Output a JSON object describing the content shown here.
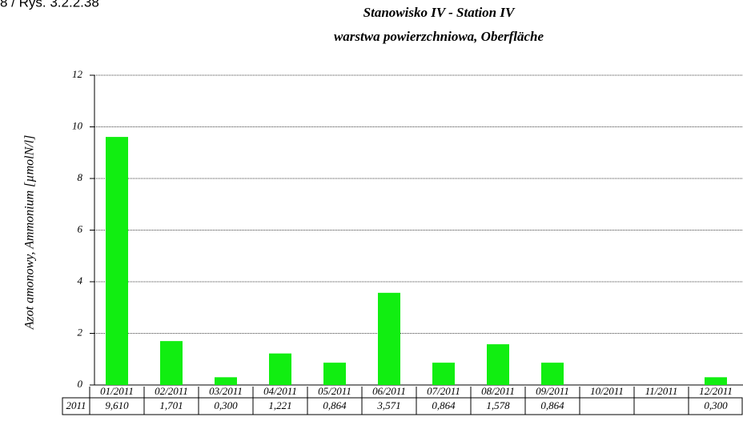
{
  "caption": "8 / Rys. 3.2.2.38",
  "chart_data": {
    "type": "bar",
    "title": "Stanowisko IV - Station IV",
    "subtitle": "warstwa powierzchniowa, Oberfläche",
    "y_label": "Azot amonowy, Ammonium [µmolN/l]",
    "categories": [
      "01/2011",
      "02/2011",
      "03/2011",
      "04/2011",
      "05/2011",
      "06/2011",
      "07/2011",
      "08/2011",
      "09/2011",
      "10/2011",
      "11/2011",
      "12/2011"
    ],
    "table_row_label": "2011",
    "values": [
      9.61,
      1.701,
      0.3,
      1.221,
      0.864,
      3.571,
      0.864,
      1.578,
      0.864,
      null,
      null,
      0.3
    ],
    "value_labels": [
      "9,610",
      "1,701",
      "0,300",
      "1,221",
      "0,864",
      "3,571",
      "0,864",
      "1,578",
      "0,864",
      null,
      null,
      "0,300"
    ],
    "color": "#11ee11",
    "ylim": [
      0,
      12
    ],
    "yticks": [
      0,
      2,
      4,
      6,
      8,
      10,
      12
    ],
    "grid": true
  }
}
